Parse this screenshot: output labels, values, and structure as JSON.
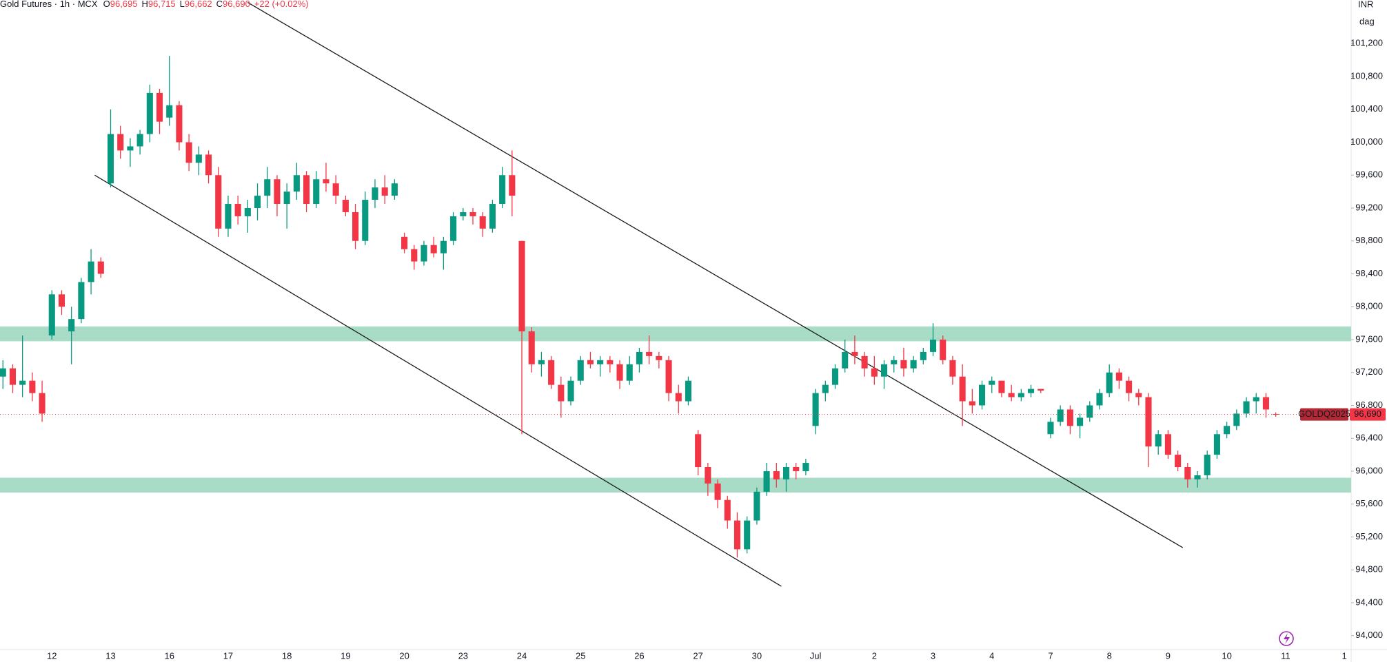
{
  "chart_data": {
    "type": "candlestick",
    "title": "Gold Futures · 1h · MCX",
    "ohlc_legend": [
      {
        "label": "O",
        "value": "96,695"
      },
      {
        "label": "H",
        "value": "96,715"
      },
      {
        "label": "L",
        "value": "96,662"
      },
      {
        "label": "C",
        "value": "96,690"
      }
    ],
    "change": "+22 (+0.02%)",
    "currency": "INR",
    "scale_label": "dag",
    "symbol": "GOLDQ2025",
    "up_color": "#089981",
    "down_color": "#f23645",
    "categories": [
      null,
      null,
      null,
      null,
      null,
      "12",
      null,
      null,
      null,
      null,
      null,
      "13",
      null,
      null,
      null,
      null,
      null,
      "16",
      null,
      null,
      null,
      null,
      null,
      "17",
      null,
      null,
      null,
      null,
      null,
      "18",
      null,
      null,
      null,
      null,
      null,
      "19",
      null,
      null,
      null,
      null,
      null,
      "20",
      null,
      null,
      null,
      null,
      null,
      "23",
      null,
      null,
      null,
      null,
      null,
      "24",
      null,
      null,
      null,
      null,
      null,
      "25",
      null,
      null,
      null,
      null,
      null,
      "26",
      null,
      null,
      null,
      null,
      null,
      "27",
      null,
      null,
      null,
      null,
      null,
      "30",
      null,
      null,
      null,
      null,
      null,
      "Jul",
      null,
      null,
      null,
      null,
      null,
      "2",
      null,
      null,
      null,
      null,
      null,
      "3",
      null,
      null,
      null,
      null,
      null,
      "4",
      null,
      null,
      null,
      null,
      null,
      "7",
      null,
      null,
      null,
      null,
      null,
      "8",
      null,
      null,
      null,
      null,
      null,
      "9",
      null,
      null,
      null,
      null,
      null,
      "10",
      null,
      null,
      null,
      null,
      null,
      "11",
      null,
      null,
      null,
      null,
      null,
      "1"
    ],
    "open": [
      97150,
      97250,
      97050,
      97100,
      96950,
      97650,
      98150,
      97700,
      97850,
      98300,
      98550,
      99500,
      100100,
      99900,
      99950,
      100100,
      100600,
      100300,
      100450,
      100000,
      99750,
      99850,
      99600,
      98950,
      99250,
      99100,
      99200,
      99350,
      99550,
      99250,
      99400,
      99600,
      99250,
      99550,
      99500,
      99300,
      99150,
      98800,
      99300,
      99450,
      99350,
      98850,
      98700,
      98550,
      98750,
      98650,
      98800,
      99100,
      99150,
      99100,
      98950,
      99250,
      99600,
      98800,
      97700,
      97300,
      97350,
      97050,
      96850,
      97100,
      97350,
      97300,
      97350,
      97300,
      97100,
      97300,
      97450,
      97400,
      97350,
      96950,
      96850,
      96450,
      96050,
      95850,
      95650,
      95400,
      95050,
      95400,
      95750,
      96000,
      95900,
      96050,
      96000,
      96550,
      96950,
      97050,
      97250,
      97450,
      97400,
      97250,
      97150,
      97300,
      97350,
      97250,
      97350,
      97450,
      97600,
      97350,
      97150,
      96850,
      96800,
      97050,
      97100,
      96950,
      96900,
      96950,
      97000,
      96450,
      96600,
      96750,
      96550,
      96650,
      96800,
      96950,
      97200,
      97100,
      96950,
      96900,
      96300,
      96450,
      96200,
      96050,
      95900,
      95950,
      96200,
      96450,
      96550,
      96700,
      96850,
      96900,
      96695,
      null,
      null,
      null,
      null,
      null,
      null,
      null
    ],
    "high": [
      97350,
      97300,
      97650,
      97200,
      97100,
      98200,
      98200,
      98000,
      98350,
      98700,
      98600,
      100400,
      100200,
      100050,
      100150,
      100700,
      100650,
      101050,
      100500,
      100100,
      99950,
      99900,
      99700,
      99350,
      99350,
      99300,
      99500,
      99700,
      99600,
      99500,
      99750,
      99650,
      99650,
      99750,
      99600,
      99350,
      99250,
      99400,
      99550,
      99600,
      99550,
      98900,
      98750,
      98800,
      98850,
      98850,
      99150,
      99200,
      99200,
      99150,
      99300,
      99700,
      99900,
      98800,
      97750,
      97450,
      97400,
      97150,
      97150,
      97400,
      97450,
      97400,
      97400,
      97350,
      97400,
      97500,
      97650,
      97450,
      97400,
      97050,
      97150,
      96500,
      96100,
      95900,
      95700,
      95500,
      95450,
      95800,
      96100,
      96100,
      96100,
      96100,
      96150,
      97000,
      97100,
      97300,
      97600,
      97650,
      97450,
      97400,
      97350,
      97400,
      97500,
      97400,
      97500,
      97800,
      97650,
      97400,
      97300,
      97000,
      97100,
      97150,
      97100,
      97050,
      97000,
      97050,
      97000,
      96650,
      96800,
      96800,
      96700,
      96850,
      97000,
      97300,
      97250,
      97150,
      97000,
      96950,
      96500,
      96500,
      96250,
      96100,
      96000,
      96250,
      96500,
      96600,
      96750,
      96900,
      96950,
      96950,
      96715,
      null,
      null,
      null,
      null,
      null,
      null,
      null
    ],
    "low": [
      97000,
      96950,
      96900,
      96850,
      96600,
      97600,
      97900,
      97300,
      97800,
      98150,
      98350,
      99450,
      99800,
      99700,
      99850,
      100000,
      100100,
      100200,
      99900,
      99650,
      99600,
      99500,
      98850,
      98850,
      99000,
      98900,
      99050,
      99200,
      99100,
      98950,
      99300,
      99150,
      99200,
      99400,
      99250,
      99100,
      98700,
      98750,
      99200,
      99250,
      99300,
      98650,
      98450,
      98500,
      98600,
      98450,
      98750,
      99050,
      99000,
      98850,
      98900,
      99200,
      99100,
      96450,
      97200,
      97150,
      97000,
      96650,
      96800,
      97050,
      97250,
      97150,
      97200,
      97000,
      97050,
      97200,
      97300,
      97250,
      96850,
      96700,
      96800,
      95950,
      95700,
      95550,
      95300,
      94950,
      95000,
      95350,
      95700,
      95800,
      95750,
      95900,
      95950,
      96450,
      96850,
      97000,
      97200,
      97300,
      97150,
      97050,
      97000,
      97200,
      97150,
      97200,
      97300,
      97400,
      97300,
      97050,
      96550,
      96700,
      96750,
      96950,
      96900,
      96850,
      96850,
      96900,
      96950,
      96400,
      96550,
      96450,
      96400,
      96600,
      96750,
      96900,
      97000,
      96850,
      96800,
      96050,
      96200,
      96150,
      96000,
      95800,
      95800,
      95900,
      96150,
      96400,
      96500,
      96650,
      96700,
      96650,
      96662,
      null,
      null,
      null,
      null,
      null,
      null,
      null
    ],
    "close": [
      97250,
      97050,
      97100,
      96950,
      96700,
      98150,
      98000,
      97850,
      98300,
      98550,
      98400,
      100100,
      99900,
      99950,
      100100,
      100600,
      100250,
      100450,
      100000,
      99750,
      99850,
      99600,
      98950,
      99250,
      99100,
      99200,
      99350,
      99550,
      99250,
      99400,
      99600,
      99250,
      99550,
      99500,
      99350,
      99150,
      98800,
      99300,
      99450,
      99350,
      99500,
      98700,
      98550,
      98750,
      98650,
      98800,
      99100,
      99150,
      99100,
      98950,
      99250,
      99600,
      99350,
      97700,
      97300,
      97350,
      97050,
      96850,
      97100,
      97350,
      97300,
      97350,
      97300,
      97100,
      97300,
      97450,
      97400,
      97350,
      96950,
      96850,
      97100,
      96050,
      95850,
      95650,
      95400,
      95050,
      95400,
      95750,
      96000,
      95900,
      96050,
      96000,
      96100,
      96950,
      97050,
      97250,
      97450,
      97400,
      97250,
      97150,
      97300,
      97350,
      97250,
      97350,
      97450,
      97600,
      97350,
      97150,
      96850,
      96800,
      97050,
      97100,
      96950,
      96900,
      96950,
      97000,
      96980,
      96600,
      96750,
      96550,
      96650,
      96800,
      96950,
      97200,
      97100,
      96950,
      96900,
      96300,
      96450,
      96200,
      96050,
      95900,
      95950,
      96200,
      96450,
      96550,
      96700,
      96850,
      96900,
      96750,
      96690,
      null,
      null,
      null,
      null,
      null,
      null,
      null
    ],
    "zones": [
      {
        "low": 97580,
        "high": 97760,
        "color": "#a8dcc6"
      },
      {
        "low": 95740,
        "high": 95920,
        "color": "#a8dcc6"
      }
    ],
    "trendlines": [
      {
        "from": [
          9.37,
          99600
        ],
        "to": [
          79.5,
          94600
        ],
        "color": "#1a1a1a"
      },
      {
        "from": [
          25.0,
          101700
        ],
        "to": [
          120.5,
          95070
        ],
        "color": "#1a1a1a"
      }
    ],
    "last_price": {
      "value": 96690,
      "label": "96,690"
    },
    "ylim": [
      93830,
      101730
    ],
    "yticks": [
      {
        "value": 94000,
        "label": "94,000"
      },
      {
        "value": 94400,
        "label": "94,400"
      },
      {
        "value": 94800,
        "label": "94,800"
      },
      {
        "value": 95200,
        "label": "95,200"
      },
      {
        "value": 95600,
        "label": "95,600"
      },
      {
        "value": 96000,
        "label": "96,000"
      },
      {
        "value": 96400,
        "label": "96,400"
      },
      {
        "value": 96800,
        "label": "96,800"
      },
      {
        "value": 97200,
        "label": "97,200"
      },
      {
        "value": 97600,
        "label": "97,600"
      },
      {
        "value": 98000,
        "label": "98,000"
      },
      {
        "value": 98400,
        "label": "98,400"
      },
      {
        "value": 98800,
        "label": "98,800"
      },
      {
        "value": 99200,
        "label": "99,200"
      },
      {
        "value": 99600,
        "label": "99,600"
      },
      {
        "value": 100000,
        "label": "100,000"
      },
      {
        "value": 100400,
        "label": "100,400"
      },
      {
        "value": 100800,
        "label": "100,800"
      },
      {
        "value": 101200,
        "label": "101,200"
      }
    ],
    "grid": false
  }
}
